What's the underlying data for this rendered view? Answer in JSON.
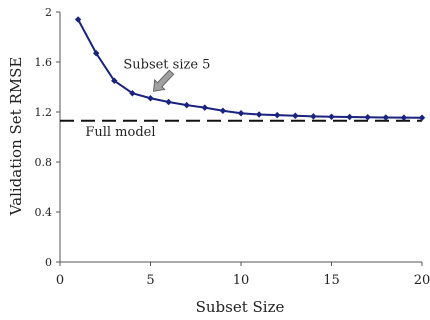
{
  "chart_data": {
    "type": "line",
    "xlabel": "Subset Size",
    "ylabel": "Validation Set RMSE",
    "xlim": [
      0,
      20
    ],
    "ylim": [
      0,
      2
    ],
    "xticks": [
      0,
      5,
      10,
      15,
      20
    ],
    "yticks": [
      0,
      0.4,
      0.8,
      1.2,
      1.6,
      2
    ],
    "ytick_labels": [
      "0",
      "0.4",
      "0.8",
      "1.2",
      "1.6",
      "2"
    ],
    "grid": false,
    "series": [
      {
        "x": [
          1,
          2,
          3,
          4,
          5,
          6,
          7,
          8,
          9,
          10,
          11,
          12,
          13,
          14,
          15,
          16,
          17,
          18,
          19,
          20
        ],
        "y": [
          1.94,
          1.67,
          1.45,
          1.35,
          1.31,
          1.28,
          1.255,
          1.235,
          1.21,
          1.19,
          1.18,
          1.175,
          1.17,
          1.165,
          1.162,
          1.16,
          1.158,
          1.156,
          1.155,
          1.154
        ],
        "color": "#1a237e",
        "marker": "diamond"
      }
    ],
    "reference_line": {
      "label": "Full model",
      "y": 1.13,
      "style": "dashed",
      "color": "#111111"
    },
    "annotation": {
      "text": "Subset size 5",
      "x": 5,
      "y": 1.31,
      "arrow_color": "#a0a0a0"
    }
  }
}
